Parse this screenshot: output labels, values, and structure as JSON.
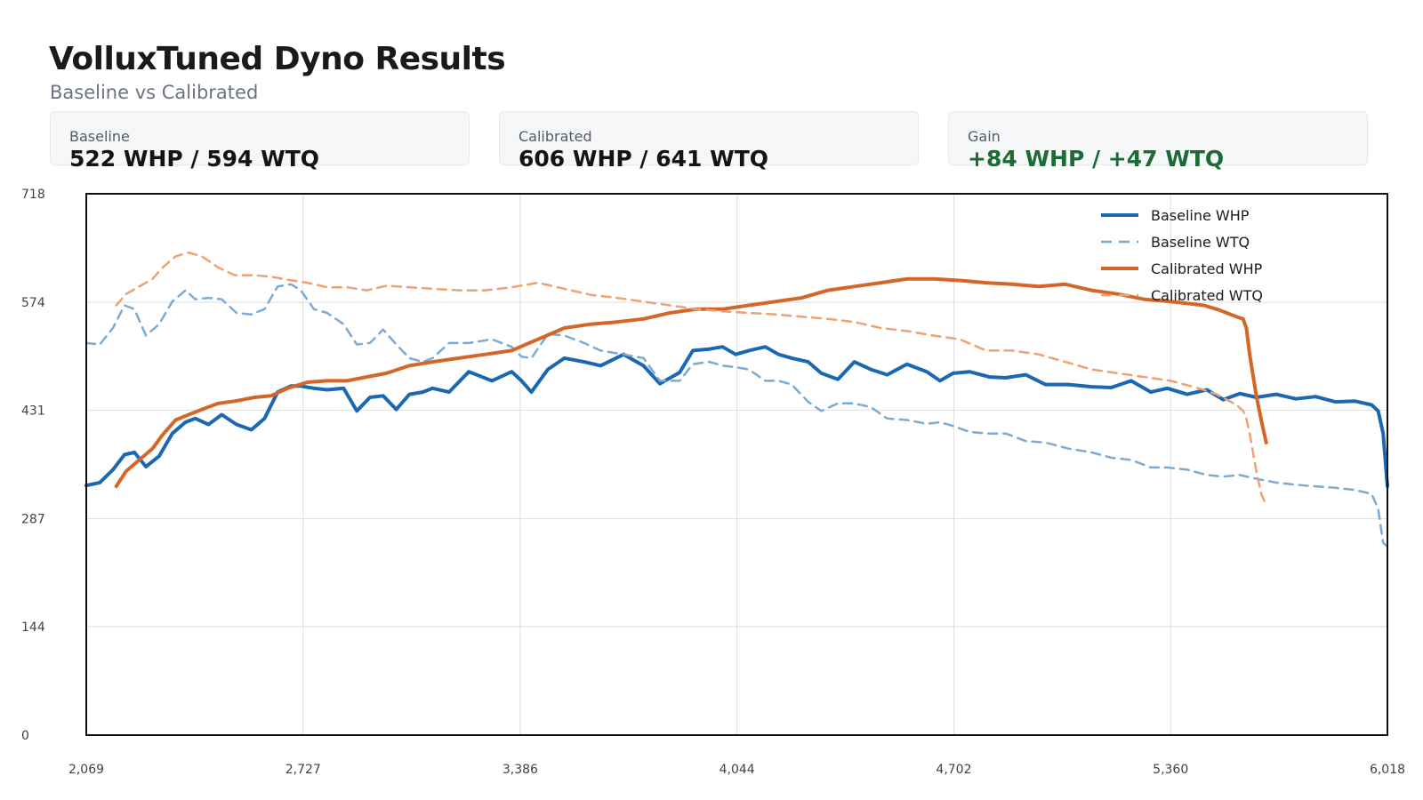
{
  "header": {
    "title": "VolluxTuned Dyno Results",
    "subtitle": "Baseline vs Calibrated"
  },
  "cards": [
    {
      "label": "Baseline",
      "value": "522 WHP / 594 WTQ"
    },
    {
      "label": "Calibrated",
      "value": "606 WHP / 641 WTQ"
    },
    {
      "label": "Gain",
      "value": "+84 WHP / +47 WTQ"
    }
  ],
  "colors": {
    "baseline": "#1a68b0",
    "baseline_light": "#7aaad6",
    "calibrated": "#d3672a",
    "calibrated_light": "#eca274",
    "gain": "#1c6b35",
    "grid": "#dcdee2"
  },
  "chart_data": {
    "type": "line",
    "title": "",
    "xlabel": "",
    "ylabel": "",
    "xlim": [
      2069,
      6018
    ],
    "ylim": [
      0,
      718
    ],
    "x_ticks": [
      "2,069",
      "2,727",
      "3,386",
      "4,044",
      "4,702",
      "5,360",
      "6,018"
    ],
    "y_ticks": [
      "0",
      "144",
      "287",
      "431",
      "574",
      "718"
    ],
    "grid": true,
    "legend_position": "top-right",
    "series": [
      {
        "name": "Baseline WHP",
        "style": "solid",
        "x": [
          2069,
          2110,
          2150,
          2185,
          2215,
          2250,
          2290,
          2330,
          2370,
          2400,
          2440,
          2480,
          2525,
          2570,
          2610,
          2650,
          2690,
          2720,
          2760,
          2800,
          2850,
          2890,
          2930,
          2970,
          3010,
          3050,
          3090,
          3120,
          3170,
          3230,
          3300,
          3360,
          3390,
          3420,
          3470,
          3520,
          3580,
          3630,
          3700,
          3760,
          3810,
          3870,
          3910,
          3960,
          4000,
          4040,
          4080,
          4130,
          4170,
          4210,
          4260,
          4300,
          4350,
          4400,
          4450,
          4500,
          4560,
          4620,
          4660,
          4700,
          4750,
          4810,
          4860,
          4920,
          4980,
          5050,
          5120,
          5180,
          5240,
          5300,
          5350,
          5410,
          5470,
          5520,
          5570,
          5620,
          5680,
          5740,
          5800,
          5860,
          5920,
          5970,
          5990,
          6005,
          6018
        ],
        "y": [
          331,
          335,
          352,
          372,
          375,
          356,
          370,
          400,
          415,
          420,
          412,
          425,
          412,
          405,
          420,
          455,
          463,
          463,
          460,
          458,
          460,
          430,
          448,
          450,
          432,
          452,
          455,
          460,
          455,
          482,
          470,
          482,
          470,
          455,
          485,
          500,
          495,
          490,
          505,
          490,
          466,
          481,
          510,
          512,
          515,
          505,
          510,
          515,
          505,
          500,
          495,
          480,
          472,
          495,
          485,
          478,
          492,
          482,
          470,
          480,
          482,
          475,
          474,
          478,
          465,
          465,
          462,
          461,
          470,
          455,
          460,
          452,
          458,
          445,
          453,
          448,
          452,
          446,
          449,
          442,
          443,
          438,
          430,
          400,
          330
        ]
      },
      {
        "name": "Baseline WTQ",
        "style": "dashed",
        "x": [
          2069,
          2110,
          2150,
          2185,
          2215,
          2250,
          2290,
          2330,
          2370,
          2400,
          2440,
          2480,
          2525,
          2570,
          2610,
          2650,
          2690,
          2720,
          2760,
          2800,
          2850,
          2890,
          2930,
          2970,
          3010,
          3050,
          3090,
          3120,
          3170,
          3230,
          3300,
          3360,
          3390,
          3420,
          3470,
          3520,
          3580,
          3630,
          3700,
          3760,
          3810,
          3870,
          3910,
          3960,
          4000,
          4040,
          4080,
          4130,
          4170,
          4210,
          4260,
          4300,
          4350,
          4400,
          4450,
          4500,
          4560,
          4620,
          4660,
          4700,
          4750,
          4810,
          4860,
          4920,
          4980,
          5050,
          5120,
          5180,
          5240,
          5300,
          5350,
          5410,
          5470,
          5520,
          5570,
          5620,
          5680,
          5740,
          5800,
          5860,
          5920,
          5970,
          5990,
          6005,
          6018
        ],
        "y": [
          520,
          518,
          540,
          570,
          565,
          530,
          545,
          575,
          590,
          578,
          580,
          578,
          560,
          558,
          565,
          595,
          598,
          590,
          565,
          560,
          545,
          518,
          520,
          538,
          518,
          500,
          495,
          500,
          520,
          520,
          525,
          515,
          502,
          500,
          532,
          530,
          520,
          510,
          505,
          500,
          470,
          470,
          492,
          495,
          490,
          488,
          485,
          470,
          470,
          465,
          442,
          430,
          440,
          440,
          435,
          420,
          418,
          413,
          415,
          410,
          402,
          400,
          400,
          390,
          388,
          380,
          375,
          368,
          365,
          355,
          355,
          352,
          345,
          343,
          345,
          340,
          335,
          332,
          330,
          328,
          325,
          320,
          300,
          255,
          250
        ]
      },
      {
        "name": "Calibrated WHP",
        "style": "solid",
        "x": [
          2160,
          2190,
          2230,
          2270,
          2300,
          2340,
          2380,
          2420,
          2470,
          2520,
          2580,
          2630,
          2680,
          2740,
          2800,
          2860,
          2920,
          2980,
          3050,
          3120,
          3200,
          3280,
          3360,
          3440,
          3520,
          3600,
          3680,
          3760,
          3840,
          3920,
          4000,
          4080,
          4160,
          4240,
          4320,
          4400,
          4480,
          4560,
          4640,
          4720,
          4800,
          4880,
          4960,
          5040,
          5120,
          5200,
          5280,
          5360,
          5420,
          5460,
          5500,
          5530,
          5560,
          5580,
          5590,
          5600,
          5620,
          5635,
          5650
        ],
        "y": [
          330,
          350,
          365,
          380,
          398,
          418,
          425,
          432,
          440,
          443,
          448,
          450,
          460,
          468,
          470,
          470,
          475,
          480,
          490,
          495,
          500,
          505,
          510,
          525,
          540,
          545,
          548,
          552,
          560,
          565,
          565,
          570,
          575,
          580,
          590,
          595,
          600,
          605,
          605,
          603,
          600,
          598,
          595,
          598,
          590,
          585,
          578,
          575,
          572,
          570,
          565,
          560,
          555,
          552,
          540,
          505,
          450,
          418,
          388
        ]
      },
      {
        "name": "Calibrated WTQ",
        "style": "dashed",
        "x": [
          2160,
          2190,
          2230,
          2270,
          2300,
          2340,
          2380,
          2420,
          2470,
          2520,
          2580,
          2630,
          2680,
          2740,
          2800,
          2860,
          2920,
          2980,
          3050,
          3120,
          3200,
          3280,
          3360,
          3440,
          3520,
          3600,
          3680,
          3760,
          3840,
          3920,
          4000,
          4080,
          4160,
          4240,
          4320,
          4400,
          4480,
          4560,
          4640,
          4720,
          4800,
          4880,
          4960,
          5040,
          5120,
          5200,
          5280,
          5360,
          5420,
          5460,
          5500,
          5530,
          5560,
          5580,
          5590,
          5600,
          5620,
          5635,
          5650
        ],
        "y": [
          570,
          585,
          595,
          605,
          620,
          635,
          640,
          635,
          620,
          610,
          610,
          608,
          604,
          600,
          594,
          594,
          590,
          596,
          594,
          592,
          590,
          590,
          594,
          600,
          592,
          584,
          580,
          575,
          570,
          565,
          562,
          560,
          558,
          555,
          552,
          548,
          540,
          536,
          530,
          525,
          510,
          510,
          505,
          495,
          485,
          480,
          475,
          470,
          463,
          458,
          452,
          445,
          438,
          430,
          420,
          400,
          350,
          320,
          305
        ]
      }
    ]
  }
}
